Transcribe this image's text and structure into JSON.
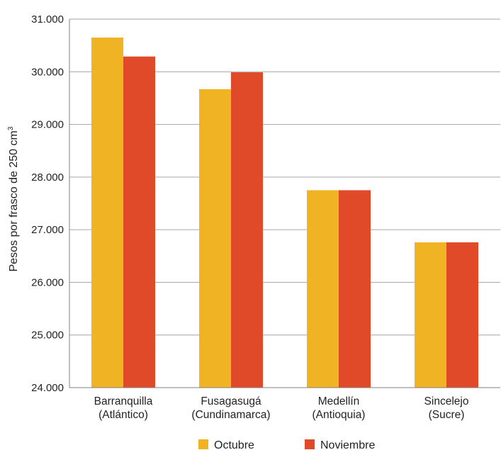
{
  "chart_data": {
    "type": "bar",
    "categories": [
      [
        "Barranquilla",
        "(Atlántico)"
      ],
      [
        "Fusagasugá",
        "(Cundinamarca)"
      ],
      [
        "Medellín",
        "(Antioquia)"
      ],
      [
        "Sincelejo",
        "(Sucre)"
      ]
    ],
    "series": [
      {
        "name": "Octubre",
        "values": [
          30650,
          29670,
          27750,
          26760
        ],
        "color": "#f0b323"
      },
      {
        "name": "Noviembre",
        "values": [
          30290,
          29990,
          27750,
          26760
        ],
        "color": "#e04a28"
      }
    ],
    "ylabel": "Pesos por frasco de 250 cm",
    "ylabel_superscript": "3",
    "ylim": [
      24000,
      31000
    ],
    "yticks": [
      24000,
      25000,
      26000,
      27000,
      28000,
      29000,
      30000,
      31000
    ],
    "ytick_labels": [
      "24.000",
      "25.000",
      "26.000",
      "27.000",
      "28.000",
      "29.000",
      "30.000",
      "31.000"
    ],
    "grid": true,
    "legend_position": "bottom"
  }
}
